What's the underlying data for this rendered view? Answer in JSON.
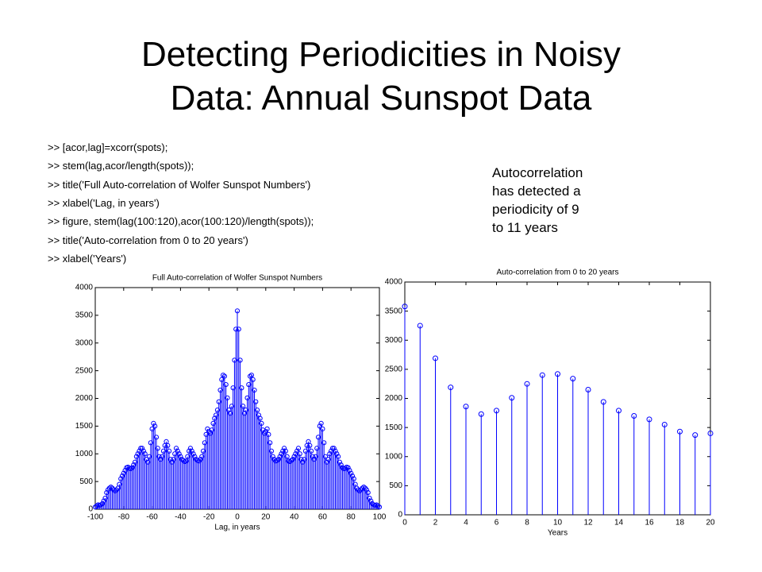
{
  "title": [
    "Detecting Periodicities in Noisy",
    "Data: Annual Sunspot Data"
  ],
  "code": [
    ">> [acor,lag]=xcorr(spots);",
    ">> stem(lag,acor/length(spots));",
    ">> title('Full Auto-correlation of Wolfer Sunspot Numbers')",
    ">> xlabel('Lag, in years')",
    ">> figure, stem(lag(100:120),acor(100:120)/length(spots));",
    ">> title('Auto-correlation from 0 to 20 years')",
    ">> xlabel('Years')"
  ],
  "note": [
    "Autocorrelation",
    "has detected a",
    "periodicity of 9",
    "to 11 years"
  ],
  "chart_data": [
    {
      "type": "stem",
      "title": "Full Auto-correlation of Wolfer Sunspot Numbers",
      "x_label": "Lag, in years",
      "color": "#0000ff",
      "x": [
        -100,
        -99,
        -98,
        -97,
        -96,
        -95,
        -94,
        -93,
        -92,
        -91,
        -90,
        -89,
        -88,
        -87,
        -86,
        -85,
        -84,
        -83,
        -82,
        -81,
        -80,
        -79,
        -78,
        -77,
        -76,
        -75,
        -74,
        -73,
        -72,
        -71,
        -70,
        -69,
        -68,
        -67,
        -66,
        -65,
        -64,
        -63,
        -62,
        -61,
        -60,
        -59,
        -58,
        -57,
        -56,
        -55,
        -54,
        -53,
        -52,
        -51,
        -50,
        -49,
        -48,
        -47,
        -46,
        -45,
        -44,
        -43,
        -42,
        -41,
        -40,
        -39,
        -38,
        -37,
        -36,
        -35,
        -34,
        -33,
        -32,
        -31,
        -30,
        -29,
        -28,
        -27,
        -26,
        -25,
        -24,
        -23,
        -22,
        -21,
        -20,
        -19,
        -18,
        -17,
        -16,
        -15,
        -14,
        -13,
        -12,
        -11,
        -10,
        -9,
        -8,
        -7,
        -6,
        -5,
        -4,
        -3,
        -2,
        -1,
        0,
        1,
        2,
        3,
        4,
        5,
        6,
        7,
        8,
        9,
        10,
        11,
        12,
        13,
        14,
        15,
        16,
        17,
        18,
        19,
        20,
        21,
        22,
        23,
        24,
        25,
        26,
        27,
        28,
        29,
        30,
        31,
        32,
        33,
        34,
        35,
        36,
        37,
        38,
        39,
        40,
        41,
        42,
        43,
        44,
        45,
        46,
        47,
        48,
        49,
        50,
        51,
        52,
        53,
        54,
        55,
        56,
        57,
        58,
        59,
        60,
        61,
        62,
        63,
        64,
        65,
        66,
        67,
        68,
        69,
        70,
        71,
        72,
        73,
        74,
        75,
        76,
        77,
        78,
        79,
        80,
        81,
        82,
        83,
        84,
        85,
        86,
        87,
        88,
        89,
        90,
        91,
        92,
        93,
        94,
        95,
        96,
        97,
        98,
        99,
        100
      ],
      "values": [
        40,
        60,
        80,
        70,
        80,
        100,
        150,
        200,
        300,
        350,
        380,
        400,
        380,
        350,
        330,
        350,
        380,
        450,
        550,
        600,
        650,
        700,
        750,
        760,
        740,
        730,
        750,
        800,
        850,
        950,
        1000,
        1050,
        1100,
        1100,
        1050,
        1000,
        900,
        850,
        950,
        1200,
        1450,
        1550,
        1500,
        1300,
        1100,
        950,
        900,
        950,
        1050,
        1150,
        1220,
        1150,
        1050,
        900,
        850,
        900,
        1000,
        1100,
        1050,
        1000,
        950,
        900,
        880,
        860,
        870,
        950,
        1050,
        1100,
        1050,
        1000,
        950,
        900,
        880,
        870,
        900,
        950,
        1050,
        1200,
        1350,
        1450,
        1400,
        1370,
        1430,
        1550,
        1640,
        1700,
        1790,
        1940,
        2150,
        2340,
        2420,
        2400,
        2250,
        2010,
        1790,
        1730,
        1860,
        2190,
        2690,
        3250,
        3580,
        3250,
        2690,
        2190,
        1860,
        1730,
        1790,
        2010,
        2250,
        2400,
        2420,
        2340,
        2150,
        1940,
        1790,
        1700,
        1640,
        1550,
        1430,
        1370,
        1400,
        1450,
        1350,
        1200,
        1050,
        950,
        900,
        870,
        880,
        900,
        950,
        1000,
        1050,
        1100,
        1050,
        950,
        870,
        860,
        880,
        900,
        950,
        1000,
        1050,
        1100,
        1000,
        900,
        850,
        900,
        1050,
        1150,
        1220,
        1150,
        1050,
        950,
        900,
        950,
        1100,
        1300,
        1500,
        1550,
        1450,
        1200,
        950,
        850,
        900,
        1000,
        1050,
        1100,
        1100,
        1050,
        1000,
        950,
        850,
        800,
        750,
        730,
        740,
        760,
        750,
        700,
        650,
        600,
        550,
        450,
        380,
        350,
        330,
        350,
        380,
        400,
        380,
        350,
        300,
        200,
        150,
        100,
        80,
        70,
        80,
        60,
        40
      ],
      "xlim": [
        -100,
        100
      ],
      "xticks": [
        -100,
        -80,
        -60,
        -40,
        -20,
        0,
        20,
        40,
        60,
        80,
        100
      ],
      "ylim": [
        0,
        4000
      ],
      "yticks": [
        0,
        500,
        1000,
        1500,
        2000,
        2500,
        3000,
        3500,
        4000
      ]
    },
    {
      "type": "stem",
      "title": "Auto-correlation from 0 to 20 years",
      "x_label": "Years",
      "color": "#0000ff",
      "x": [
        0,
        1,
        2,
        3,
        4,
        5,
        6,
        7,
        8,
        9,
        10,
        11,
        12,
        13,
        14,
        15,
        16,
        17,
        18,
        19,
        20
      ],
      "values": [
        3580,
        3250,
        2690,
        2190,
        1860,
        1730,
        1790,
        2010,
        2250,
        2400,
        2420,
        2340,
        2150,
        1940,
        1790,
        1700,
        1640,
        1550,
        1430,
        1370,
        1400
      ],
      "xlim": [
        0,
        20
      ],
      "xticks": [
        0,
        2,
        4,
        6,
        8,
        10,
        12,
        14,
        16,
        18,
        20
      ],
      "ylim": [
        0,
        4000
      ],
      "yticks": [
        0,
        500,
        1000,
        1500,
        2000,
        2500,
        3000,
        3500,
        4000
      ]
    }
  ]
}
